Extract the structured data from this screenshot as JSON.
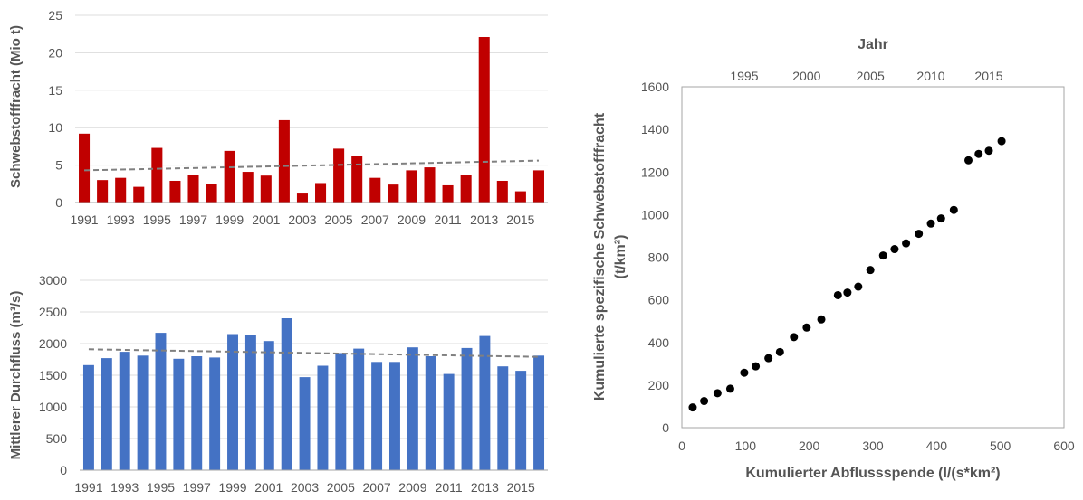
{
  "chart_data": [
    {
      "type": "bar",
      "categories": [
        "1991",
        "1992",
        "1993",
        "1994",
        "1995",
        "1996",
        "1997",
        "1998",
        "1999",
        "2000",
        "2001",
        "2002",
        "2003",
        "2004",
        "2005",
        "2006",
        "2007",
        "2008",
        "2009",
        "2010",
        "2011",
        "2012",
        "2013",
        "2014",
        "2015",
        "2016"
      ],
      "x_tick_labels": [
        "1991",
        "1993",
        "1995",
        "1997",
        "1999",
        "2001",
        "2003",
        "2005",
        "2007",
        "2009",
        "2011",
        "2013",
        "2015"
      ],
      "values": [
        9.2,
        3.0,
        3.3,
        2.1,
        7.3,
        2.9,
        3.7,
        2.5,
        6.9,
        4.1,
        3.6,
        11.0,
        1.2,
        2.6,
        7.2,
        6.2,
        3.3,
        2.4,
        4.3,
        4.7,
        2.3,
        3.7,
        22.1,
        2.9,
        1.5,
        4.3
      ],
      "ylabel": "Schwebstofffracht (Mio t)",
      "ylim": [
        0,
        25
      ],
      "y_ticks": [
        0,
        5,
        10,
        15,
        20,
        25
      ],
      "trendline": {
        "start": 4.3,
        "end": 5.6
      },
      "bar_color": "#c00000",
      "trend_color": "#808080",
      "grid": true
    },
    {
      "type": "bar",
      "categories": [
        "1991",
        "1992",
        "1993",
        "1994",
        "1995",
        "1996",
        "1997",
        "1998",
        "1999",
        "2000",
        "2001",
        "2002",
        "2003",
        "2004",
        "2005",
        "2006",
        "2007",
        "2008",
        "2009",
        "2010",
        "2011",
        "2012",
        "2013",
        "2014",
        "2015",
        "2016"
      ],
      "x_tick_labels": [
        "1991",
        "1993",
        "1995",
        "1997",
        "1999",
        "2001",
        "2003",
        "2005",
        "2007",
        "2009",
        "2011",
        "2013",
        "2015"
      ],
      "values": [
        1660,
        1770,
        1870,
        1810,
        2170,
        1760,
        1800,
        1780,
        2150,
        2140,
        2040,
        2400,
        1470,
        1650,
        1850,
        1920,
        1710,
        1710,
        1940,
        1800,
        1520,
        1930,
        2120,
        1640,
        1570,
        1810
      ],
      "ylabel": "Mittlerer Durchfluss (m³/s)",
      "ylim": [
        0,
        3000
      ],
      "y_ticks": [
        0,
        500,
        1000,
        1500,
        2000,
        2500,
        3000
      ],
      "trendline": {
        "start": 1910,
        "end": 1790
      },
      "bar_color": "#4472c4",
      "trend_color": "#808080",
      "grid": true
    },
    {
      "type": "scatter",
      "x": [
        17,
        35,
        56,
        76,
        98,
        116,
        136,
        154,
        176,
        196,
        219,
        245,
        260,
        277,
        296,
        316,
        334,
        352,
        372,
        391,
        407,
        427,
        450,
        466,
        482,
        502
      ],
      "y": [
        95,
        125,
        162,
        183,
        258,
        288,
        326,
        355,
        425,
        470,
        508,
        622,
        634,
        662,
        740,
        808,
        838,
        865,
        910,
        958,
        982,
        1022,
        1255,
        1285,
        1300,
        1345
      ],
      "xlabel": "Kumulierter Abflussspende (l/(s*km²)",
      "ylabel_line1": "Kumulierte spezifische Schwebstofffracht",
      "ylabel_line2": "(t/km²)",
      "xlim": [
        0,
        600
      ],
      "ylim": [
        0,
        1600
      ],
      "x_ticks": [
        0,
        100,
        200,
        300,
        400,
        500,
        600
      ],
      "y_ticks": [
        0,
        200,
        400,
        600,
        800,
        1000,
        1200,
        1400,
        1600
      ],
      "secondary_x_label": "Jahr",
      "secondary_x_ticks": [
        {
          "label": "1995",
          "at": 98
        },
        {
          "label": "2000",
          "at": 196
        },
        {
          "label": "2005",
          "at": 296
        },
        {
          "label": "2010",
          "at": 391
        },
        {
          "label": "2015",
          "at": 482
        }
      ],
      "marker_color": "#000000",
      "grid": false
    }
  ]
}
